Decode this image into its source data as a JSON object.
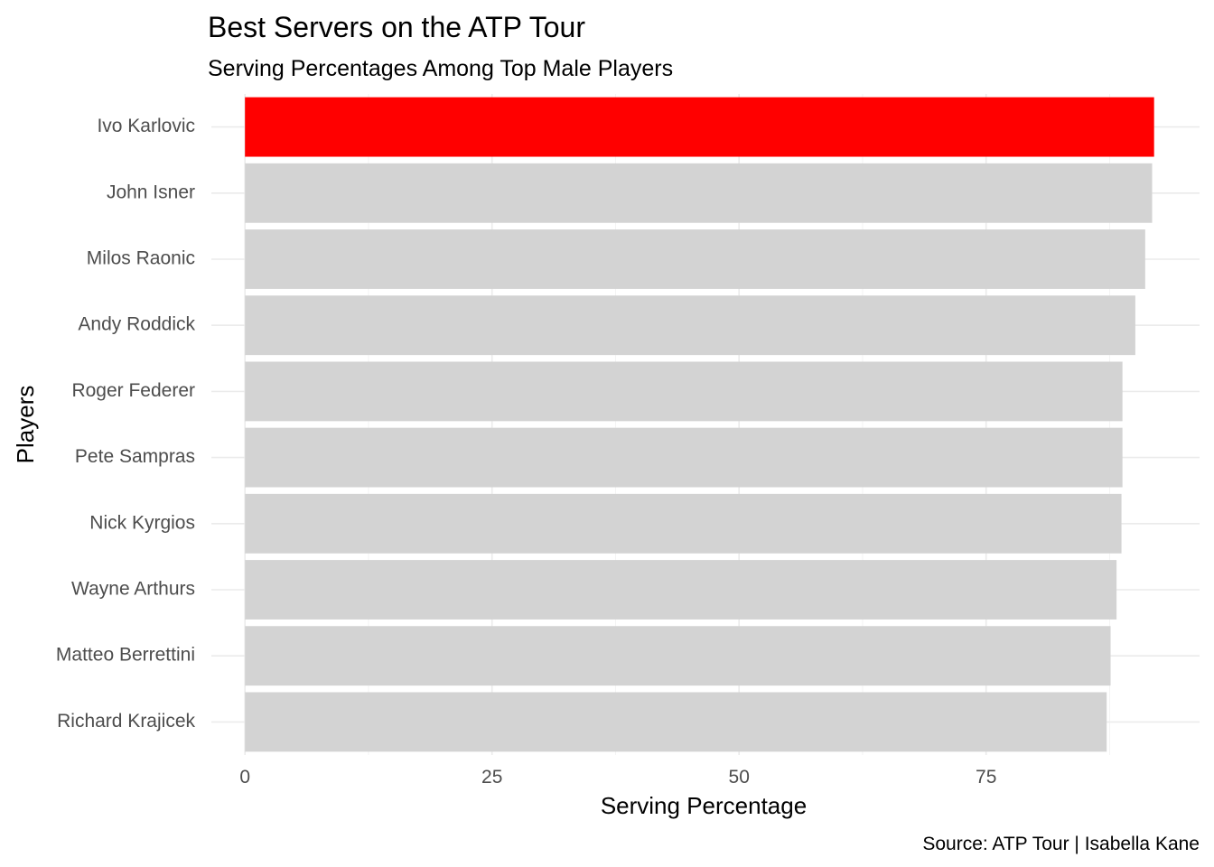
{
  "chart_data": {
    "type": "bar",
    "orientation": "horizontal",
    "title": "Best Servers on the ATP Tour",
    "subtitle": "Serving Percentages Among Top Male Players",
    "xlabel": "Serving Percentage",
    "ylabel": "Players",
    "caption": "Source: ATP Tour | Isabella Kane",
    "categories": [
      "Ivo Karlovic",
      "John Isner",
      "Milos Raonic",
      "Andy Roddick",
      "Roger Federer",
      "Pete Sampras",
      "Nick Kyrgios",
      "Wayne Arthurs",
      "Matteo Berrettini",
      "Richard Krajicek"
    ],
    "values": [
      92.0,
      91.8,
      91.1,
      90.1,
      88.8,
      88.8,
      88.7,
      88.2,
      87.6,
      87.2
    ],
    "colors": [
      "#ff0000",
      "#d3d3d3",
      "#d3d3d3",
      "#d3d3d3",
      "#d3d3d3",
      "#d3d3d3",
      "#d3d3d3",
      "#d3d3d3",
      "#d3d3d3",
      "#d3d3d3"
    ],
    "xticks": [
      0,
      25,
      50,
      75
    ],
    "xlim": [
      -3.4,
      96.6
    ],
    "grid": true,
    "legend": "none"
  }
}
